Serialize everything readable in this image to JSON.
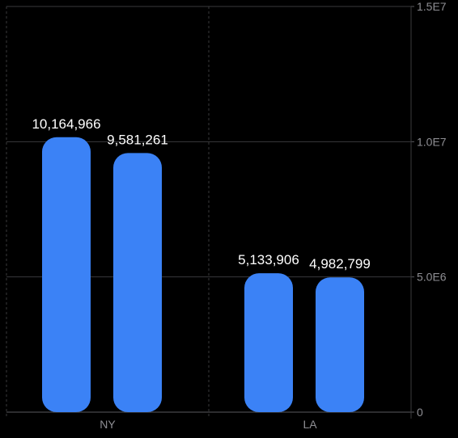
{
  "chart_data": {
    "type": "bar",
    "categories": [
      "NY",
      "LA"
    ],
    "series": [
      {
        "values": [
          10164966,
          5133906
        ]
      },
      {
        "values": [
          9581261,
          4982799
        ]
      }
    ],
    "data_labels": [
      [
        "10,164,966",
        "5,133,906"
      ],
      [
        "9,581,261",
        "4,982,799"
      ]
    ],
    "y_ticks": [
      {
        "value": 0,
        "label": "0"
      },
      {
        "value": 5000000,
        "label": "5.0E6"
      },
      {
        "value": 10000000,
        "label": "1.0E7"
      },
      {
        "value": 15000000,
        "label": "1.5E7"
      }
    ],
    "ylim": [
      0,
      15000000
    ],
    "y_axis_position": "right",
    "grid": true,
    "bar_color": "#3b82f6",
    "background": "#000000",
    "title": "",
    "xlabel": "",
    "ylabel": ""
  }
}
